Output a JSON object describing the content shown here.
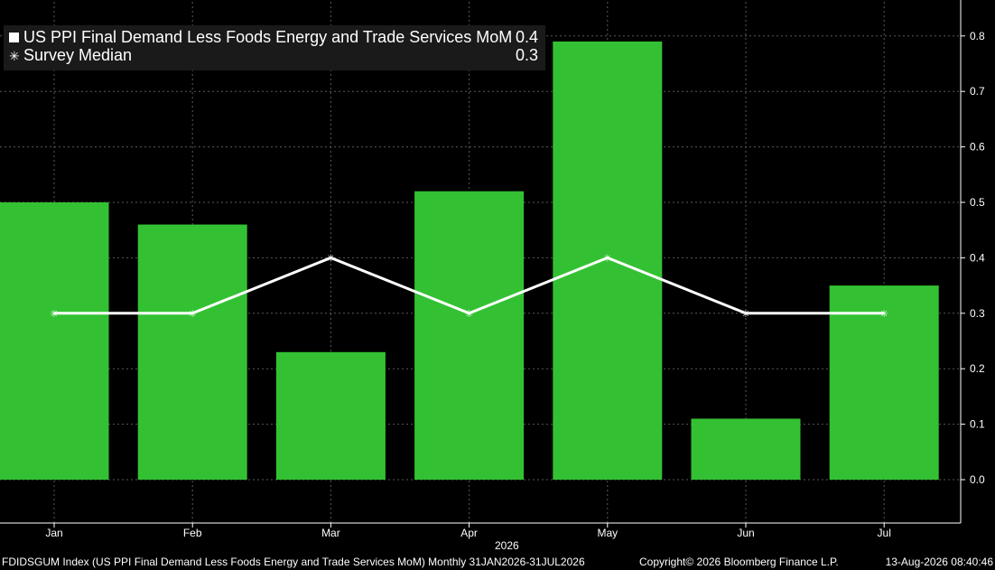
{
  "colors": {
    "background": "#000000",
    "bar": "#33c133",
    "line": "#ffffff",
    "grid": "#5a5a5a"
  },
  "legend": {
    "series1_label": "US PPI Final Demand Less Foods Energy and Trade Services MoM",
    "series1_value": "0.4",
    "series2_label": "Survey Median",
    "series2_value": "0.3"
  },
  "footer": {
    "source": "FDIDSGUM Index (US PPI Final Demand Less Foods Energy and Trade Services MoM) Monthly 31JAN2026-31JUL2026",
    "copyright": "Copyright© 2026 Bloomberg Finance L.P.",
    "timestamp": "13-Aug-2026 08:40:46"
  },
  "chart_data": {
    "type": "bar",
    "categories": [
      "Jan",
      "Feb",
      "Mar",
      "Apr",
      "May",
      "Jun",
      "Jul"
    ],
    "x_group_label": "2026",
    "series": [
      {
        "name": "US PPI Final Demand Less Foods Energy and Trade Services MoM",
        "type": "bar",
        "values": [
          0.5,
          0.46,
          0.23,
          0.52,
          0.79,
          0.11,
          0.35
        ]
      },
      {
        "name": "Survey Median",
        "type": "line",
        "values": [
          0.3,
          0.3,
          0.4,
          0.3,
          0.4,
          0.3,
          0.3
        ]
      }
    ],
    "ylim": [
      -0.08,
      0.86
    ],
    "yticks": [
      "0.0",
      "0.1",
      "0.2",
      "0.3",
      "0.4",
      "0.5",
      "0.6",
      "0.7",
      "0.8"
    ],
    "y_axis_side": "right",
    "grid": true,
    "legend_position": "top-left"
  }
}
